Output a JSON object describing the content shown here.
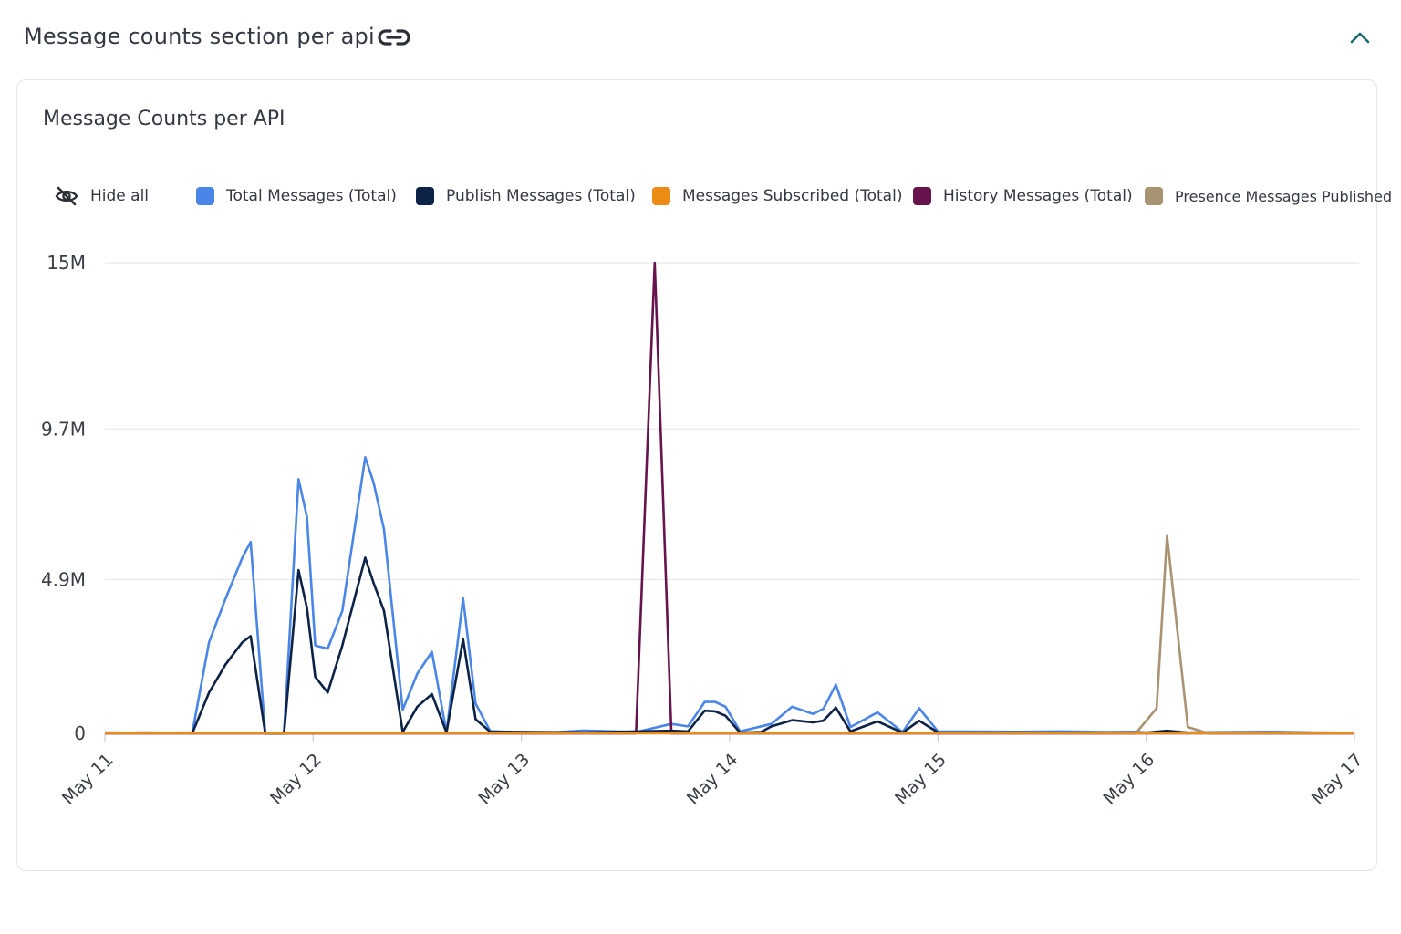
{
  "section": {
    "title": "Message counts section per api",
    "link_icon": "link-icon",
    "collapse_icon": "chevron-up-icon"
  },
  "card": {
    "title": "Message Counts per API"
  },
  "legend": {
    "hide_all_label": "Hide all",
    "hide_icon": "eye-off-icon",
    "items": [
      {
        "label": "Total Messages (Total)",
        "color": "#4a86e8"
      },
      {
        "label": "Publish Messages (Total)",
        "color": "#0d2247"
      },
      {
        "label": "Messages Subscribed (Total)",
        "color": "#ec8c15"
      },
      {
        "label": "History Messages (Total)",
        "color": "#66134e"
      },
      {
        "label": "Presence Messages Published",
        "color": "#a89473"
      }
    ]
  },
  "colors": {
    "accent": "#1a6b6b",
    "grid": "#e6e6e6"
  },
  "chart_data": {
    "type": "line",
    "x_ticks": [
      "May 11",
      "May 12",
      "May 13",
      "May 14",
      "May 15",
      "May 16",
      "May 17"
    ],
    "y_ticks": [
      "0",
      "4.9M",
      "9.7M",
      "15M"
    ],
    "ylim": [
      0,
      15000000
    ],
    "grid": true,
    "legend_position": "top",
    "series": [
      {
        "name": "Total Messages (Total)",
        "color": "#4a86e8",
        "points": [
          [
            11.0,
            30000
          ],
          [
            11.1,
            20000
          ],
          [
            11.2,
            30000
          ],
          [
            11.3,
            20000
          ],
          [
            11.42,
            30000
          ],
          [
            11.5,
            2900000
          ],
          [
            11.58,
            4300000
          ],
          [
            11.66,
            5600000
          ],
          [
            11.7,
            6100000
          ],
          [
            11.77,
            0
          ],
          [
            11.86,
            0
          ],
          [
            11.93,
            8100000
          ],
          [
            11.97,
            6900000
          ],
          [
            12.01,
            2800000
          ],
          [
            12.07,
            2700000
          ],
          [
            12.14,
            3900000
          ],
          [
            12.25,
            8800000
          ],
          [
            12.29,
            8000000
          ],
          [
            12.34,
            6500000
          ],
          [
            12.43,
            750000
          ],
          [
            12.5,
            1900000
          ],
          [
            12.57,
            2600000
          ],
          [
            12.64,
            30000
          ],
          [
            12.72,
            4300000
          ],
          [
            12.78,
            950000
          ],
          [
            12.85,
            70000
          ],
          [
            12.95,
            40000
          ],
          [
            13.15,
            30000
          ],
          [
            13.3,
            90000
          ],
          [
            13.55,
            40000
          ],
          [
            13.72,
            300000
          ],
          [
            13.8,
            220000
          ],
          [
            13.88,
            1000000
          ],
          [
            13.93,
            1000000
          ],
          [
            13.98,
            850000
          ],
          [
            14.05,
            60000
          ],
          [
            14.2,
            300000
          ],
          [
            14.3,
            850000
          ],
          [
            14.4,
            620000
          ],
          [
            14.45,
            780000
          ],
          [
            14.51,
            1550000
          ],
          [
            14.58,
            200000
          ],
          [
            14.71,
            670000
          ],
          [
            14.83,
            40000
          ],
          [
            14.91,
            800000
          ],
          [
            15.0,
            60000
          ],
          [
            15.4,
            50000
          ],
          [
            15.6,
            60000
          ],
          [
            15.8,
            40000
          ],
          [
            15.95,
            50000
          ],
          [
            16.0,
            30000
          ],
          [
            16.05,
            30000
          ],
          [
            16.1,
            50000
          ],
          [
            16.2,
            30000
          ],
          [
            16.4,
            40000
          ],
          [
            16.6,
            50000
          ],
          [
            16.8,
            30000
          ],
          [
            17.0,
            20000
          ]
        ]
      },
      {
        "name": "Publish Messages (Total)",
        "color": "#0d2247",
        "points": [
          [
            11.0,
            10000
          ],
          [
            11.42,
            10000
          ],
          [
            11.5,
            1300000
          ],
          [
            11.58,
            2200000
          ],
          [
            11.66,
            2900000
          ],
          [
            11.7,
            3100000
          ],
          [
            11.77,
            0
          ],
          [
            11.86,
            0
          ],
          [
            11.93,
            5200000
          ],
          [
            11.97,
            4000000
          ],
          [
            12.01,
            1800000
          ],
          [
            12.07,
            1300000
          ],
          [
            12.14,
            2800000
          ],
          [
            12.25,
            5600000
          ],
          [
            12.29,
            4800000
          ],
          [
            12.34,
            3900000
          ],
          [
            12.43,
            40000
          ],
          [
            12.5,
            850000
          ],
          [
            12.57,
            1250000
          ],
          [
            12.64,
            30000
          ],
          [
            12.72,
            3000000
          ],
          [
            12.78,
            450000
          ],
          [
            12.85,
            50000
          ],
          [
            13.3,
            30000
          ],
          [
            13.72,
            80000
          ],
          [
            13.8,
            60000
          ],
          [
            13.88,
            720000
          ],
          [
            13.93,
            700000
          ],
          [
            13.98,
            560000
          ],
          [
            14.05,
            20000
          ],
          [
            14.15,
            40000
          ],
          [
            14.2,
            220000
          ],
          [
            14.3,
            420000
          ],
          [
            14.4,
            350000
          ],
          [
            14.45,
            400000
          ],
          [
            14.51,
            820000
          ],
          [
            14.58,
            60000
          ],
          [
            14.71,
            380000
          ],
          [
            14.83,
            20000
          ],
          [
            14.91,
            400000
          ],
          [
            15.0,
            30000
          ],
          [
            16.0,
            20000
          ],
          [
            16.1,
            80000
          ],
          [
            16.2,
            20000
          ],
          [
            17.0,
            10000
          ]
        ]
      },
      {
        "name": "Messages Subscribed (Total)",
        "color": "#ec8c15",
        "points": [
          [
            11.0,
            0
          ],
          [
            17.0,
            0
          ]
        ]
      },
      {
        "name": "History Messages (Total)",
        "color": "#66134e",
        "points": [
          [
            11.0,
            0
          ],
          [
            13.55,
            0
          ],
          [
            13.64,
            15000000
          ],
          [
            13.72,
            0
          ],
          [
            17.0,
            0
          ]
        ]
      },
      {
        "name": "Presence Messages Published",
        "color": "#a89473",
        "points": [
          [
            11.0,
            0
          ],
          [
            15.95,
            0
          ],
          [
            16.05,
            800000
          ],
          [
            16.1,
            6300000
          ],
          [
            16.2,
            200000
          ],
          [
            16.3,
            0
          ],
          [
            17.0,
            0
          ]
        ]
      }
    ]
  }
}
